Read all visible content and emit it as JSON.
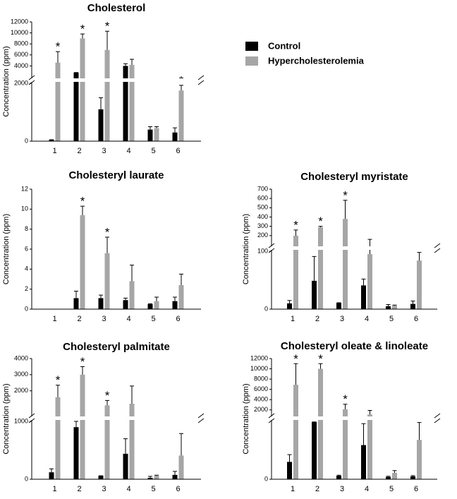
{
  "legend": {
    "series": [
      {
        "name": "Control",
        "color": "#000000"
      },
      {
        "name": "Hypercholesterolemia",
        "color": "#a6a6a6"
      }
    ]
  },
  "chart_data": [
    {
      "type": "bar",
      "title": "Cholesterol",
      "y_label": "Concentration (ppm)",
      "categories": [
        "1",
        "2",
        "3",
        "4",
        "5",
        "6"
      ],
      "series": [
        {
          "color": "#000000",
          "values": [
            50,
            2800,
            1100,
            4000,
            400,
            300
          ],
          "errors": [
            0,
            0,
            400,
            400,
            100,
            160
          ]
        },
        {
          "color": "#a6a6a6",
          "values": [
            4600,
            9000,
            6900,
            4200,
            450,
            1750
          ],
          "errors": [
            2000,
            800,
            3400,
            1000,
            50,
            180
          ],
          "significance": [
            "*",
            "*",
            "*",
            null,
            null,
            "*"
          ]
        }
      ],
      "segments": [
        {
          "ylim": [
            0,
            2000
          ],
          "yticks": [
            0
          ]
        },
        {
          "ylim": [
            2000,
            12000
          ],
          "yticks": [
            2000,
            4000,
            6000,
            8000,
            10000,
            12000
          ]
        }
      ]
    },
    {
      "type": "bar",
      "title": "Cholesteryl laurate",
      "y_label": "Concentration (ppm)",
      "categories": [
        "1",
        "2",
        "3",
        "4",
        "5",
        "6"
      ],
      "series": [
        {
          "color": "#000000",
          "values": [
            0,
            1.1,
            1.1,
            0.9,
            0.5,
            0.8
          ],
          "errors": [
            0,
            0.7,
            0.3,
            0.2,
            0.05,
            0.4
          ]
        },
        {
          "color": "#a6a6a6",
          "values": [
            0,
            9.4,
            5.6,
            2.8,
            0.8,
            2.4
          ],
          "errors": [
            0,
            0.9,
            1.6,
            1.6,
            0.4,
            1.1
          ],
          "significance": [
            null,
            "*",
            "*",
            null,
            null,
            null
          ]
        }
      ],
      "ylim": [
        0,
        12
      ],
      "yticks": [
        0,
        2,
        4,
        6,
        8,
        10,
        12
      ]
    },
    {
      "type": "bar",
      "title": "Cholesteryl myristate",
      "y_label": "Concentration (ppm)",
      "categories": [
        "1",
        "2",
        "3",
        "4",
        "5",
        "6"
      ],
      "series": [
        {
          "color": "#000000",
          "values": [
            10,
            49,
            11,
            41,
            5,
            9
          ],
          "errors": [
            5,
            42,
            0,
            11,
            3,
            5
          ]
        },
        {
          "color": "#a6a6a6",
          "values": [
            200,
            290,
            380,
            95,
            6,
            84
          ],
          "errors": [
            60,
            10,
            200,
            65,
            1,
            14
          ],
          "significance": [
            "*",
            "*",
            "*",
            null,
            null,
            null
          ]
        }
      ],
      "segments": [
        {
          "ylim": [
            0,
            100
          ],
          "yticks": [
            0
          ]
        },
        {
          "ylim": [
            100,
            700
          ],
          "yticks": [
            100,
            200,
            300,
            400,
            500,
            600,
            700
          ]
        }
      ]
    },
    {
      "type": "bar",
      "title": "Cholesteryl palmitate",
      "y_label": "Concentration (ppm)",
      "categories": [
        "1",
        "2",
        "3",
        "4",
        "5",
        "6"
      ],
      "series": [
        {
          "color": "#000000",
          "values": [
            120,
            900,
            60,
            440,
            25,
            75
          ],
          "errors": [
            60,
            100,
            0,
            260,
            25,
            60
          ]
        },
        {
          "color": "#a6a6a6",
          "values": [
            1600,
            3000,
            1100,
            1200,
            60,
            410
          ],
          "errors": [
            750,
            500,
            300,
            1100,
            10,
            380
          ],
          "significance": [
            "*",
            "*",
            "*",
            null,
            null,
            null
          ]
        }
      ],
      "segments": [
        {
          "ylim": [
            0,
            1000
          ],
          "yticks": [
            0
          ]
        },
        {
          "ylim": [
            500,
            4000
          ],
          "yticks": [
            1000,
            2000,
            3000,
            4000
          ]
        }
      ]
    },
    {
      "type": "bar",
      "title": "Cholesteryl oleate & linoleate",
      "y_label": "Concentration (ppm)",
      "categories": [
        "1",
        "2",
        "3",
        "4",
        "5",
        "6"
      ],
      "series": [
        {
          "color": "#000000",
          "values": [
            300,
            990,
            60,
            590,
            40,
            50
          ],
          "errors": [
            125,
            0,
            10,
            370,
            12,
            12
          ]
        },
        {
          "color": "#a6a6a6",
          "values": [
            6900,
            10000,
            2100,
            1100,
            110,
            680
          ],
          "errors": [
            4100,
            1000,
            1000,
            800,
            40,
            300
          ],
          "significance": [
            "*",
            "*",
            "*",
            null,
            null,
            null
          ]
        }
      ],
      "segments": [
        {
          "ylim": [
            0,
            1000
          ],
          "yticks": [
            0
          ]
        },
        {
          "ylim": [
            1000,
            12000
          ],
          "yticks": [
            2000,
            4000,
            6000,
            8000,
            10000,
            12000
          ]
        }
      ]
    }
  ]
}
